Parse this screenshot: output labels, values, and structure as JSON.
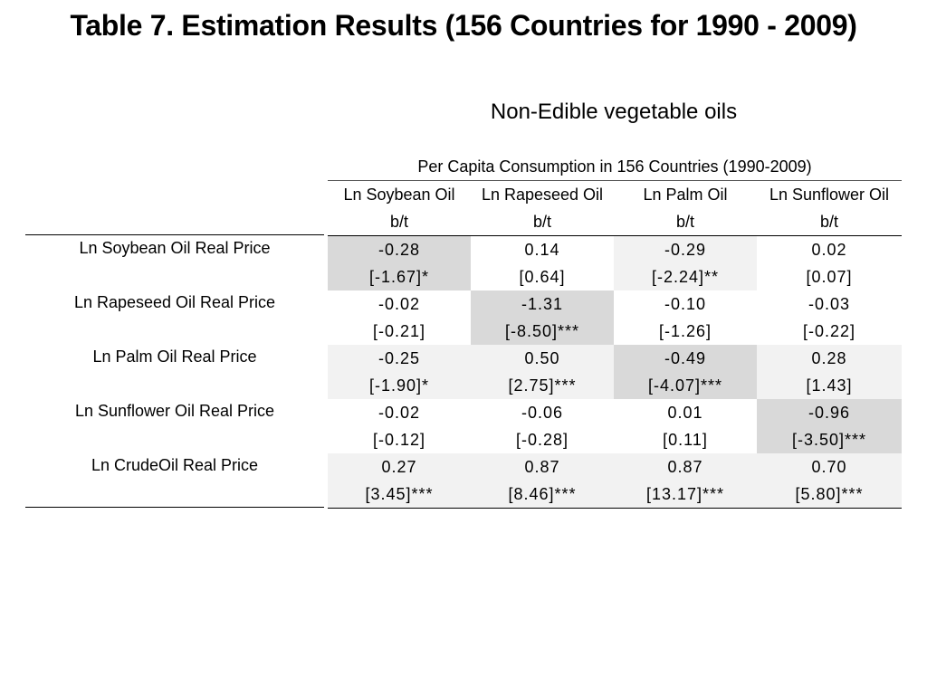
{
  "title": "Table 7. Estimation Results (156 Countries for 1990 - 2009)",
  "group_title": "Non-Edible vegetable oils",
  "table_caption": "Per Capita Consumption in 156 Countries (1990-2009)",
  "columns": [
    {
      "label": "Ln Soybean Oil",
      "sub": "b/t"
    },
    {
      "label": "Ln Rapeseed Oil",
      "sub": "b/t"
    },
    {
      "label": "Ln Palm Oil",
      "sub": "b/t"
    },
    {
      "label": "Ln Sunflower Oil",
      "sub": "b/t"
    }
  ],
  "rows": [
    {
      "label": "Ln Soybean Oil Real Price",
      "cells": [
        {
          "b": "-0.28",
          "t": "[-1.67]*",
          "shade": "#d9d9d9"
        },
        {
          "b": "0.14",
          "t": "[0.64]",
          "shade": "#ffffff"
        },
        {
          "b": "-0.29",
          "t": "[-2.24]**",
          "shade": "#f2f2f2"
        },
        {
          "b": "0.02",
          "t": "[0.07]",
          "shade": "#ffffff"
        }
      ]
    },
    {
      "label": "Ln Rapeseed Oil Real Price",
      "cells": [
        {
          "b": "-0.02",
          "t": "[-0.21]",
          "shade": "#ffffff"
        },
        {
          "b": "-1.31",
          "t": "[-8.50]***",
          "shade": "#d9d9d9"
        },
        {
          "b": "-0.10",
          "t": "[-1.26]",
          "shade": "#ffffff"
        },
        {
          "b": "-0.03",
          "t": "[-0.22]",
          "shade": "#ffffff"
        }
      ]
    },
    {
      "label": "Ln Palm Oil Real Price",
      "cells": [
        {
          "b": "-0.25",
          "t": "[-1.90]*",
          "shade": "#f2f2f2"
        },
        {
          "b": "0.50",
          "t": "[2.75]***",
          "shade": "#f2f2f2"
        },
        {
          "b": "-0.49",
          "t": "[-4.07]***",
          "shade": "#d9d9d9"
        },
        {
          "b": "0.28",
          "t": "[1.43]",
          "shade": "#f2f2f2"
        }
      ]
    },
    {
      "label": "Ln Sunflower Oil Real Price",
      "cells": [
        {
          "b": "-0.02",
          "t": "[-0.12]",
          "shade": "#ffffff"
        },
        {
          "b": "-0.06",
          "t": "[-0.28]",
          "shade": "#ffffff"
        },
        {
          "b": "0.01",
          "t": "[0.11]",
          "shade": "#ffffff"
        },
        {
          "b": "-0.96",
          "t": "[-3.50]***",
          "shade": "#d9d9d9"
        }
      ]
    },
    {
      "label": "Ln CrudeOil Real Price",
      "cells": [
        {
          "b": "0.27",
          "t": "[3.45]***",
          "shade": "#f2f2f2"
        },
        {
          "b": "0.87",
          "t": "[8.46]***",
          "shade": "#f2f2f2"
        },
        {
          "b": "0.87",
          "t": "[13.17]***",
          "shade": "#f2f2f2"
        },
        {
          "b": "0.70",
          "t": "[5.80]***",
          "shade": "#f2f2f2"
        }
      ]
    }
  ]
}
